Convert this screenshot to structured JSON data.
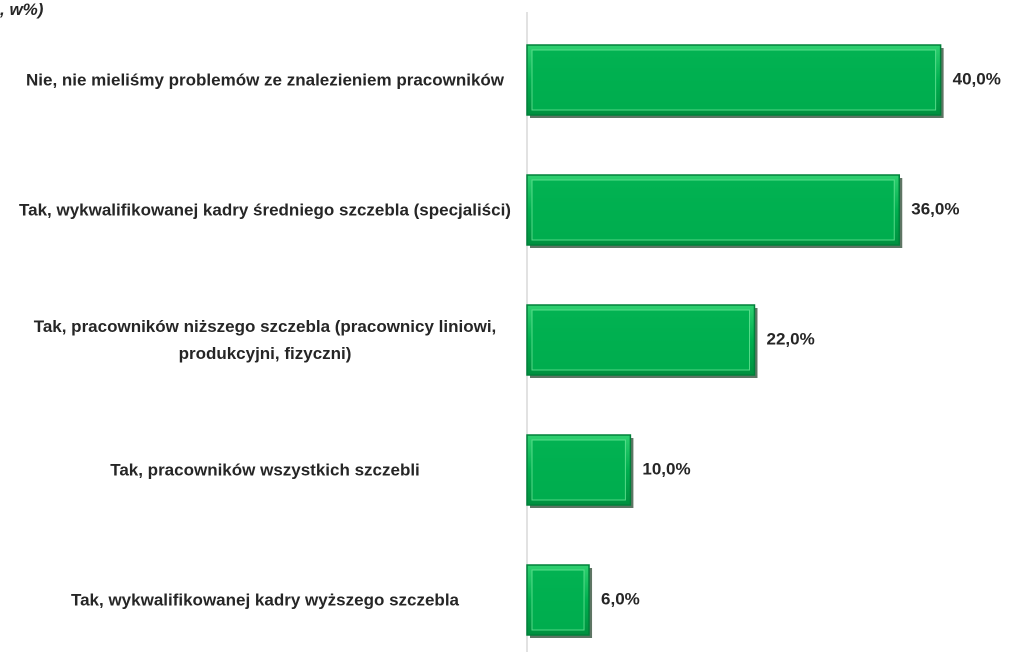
{
  "chart_data": {
    "type": "bar",
    "orientation": "horizontal",
    "title": ", w%)",
    "categories": [
      "Nie, nie mieliśmy problemów ze znalezieniem pracowników",
      "Tak, wykwalifikowanej kadry średniego szczebla (specjaliści)",
      "Tak, pracowników niższego szczebla (pracownicy liniowi, produkcyjni, fizyczni)",
      "Tak, pracowników wszystkich szczebli",
      "Tak, wykwalifikowanej kadry wyższego szczebla"
    ],
    "values": [
      40,
      36,
      22,
      10,
      6
    ],
    "value_labels": [
      "40,0%",
      "36,0%",
      "22,0%",
      "10,0%",
      "6,0%"
    ],
    "color": "#00b050",
    "xlim": [
      0,
      47
    ]
  }
}
